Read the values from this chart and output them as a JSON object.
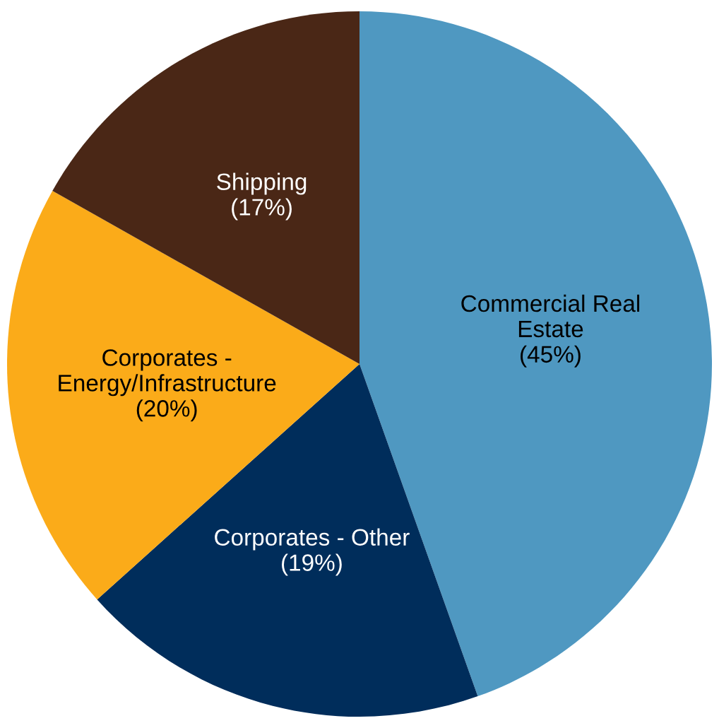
{
  "chart_data": {
    "type": "pie",
    "categories": [
      "Commercial Real\nEstate",
      "Corporates - Other",
      "Corporates -\nEnergy/Infrastructure",
      "Shipping"
    ],
    "values": [
      45,
      19,
      20,
      17
    ],
    "value_labels": [
      "(45%)",
      "(19%)",
      "(20%)",
      "(17%)"
    ],
    "colors": [
      "#4f98c1",
      "#002d5b",
      "#fbab19",
      "#4a2716"
    ],
    "legend": false
  }
}
